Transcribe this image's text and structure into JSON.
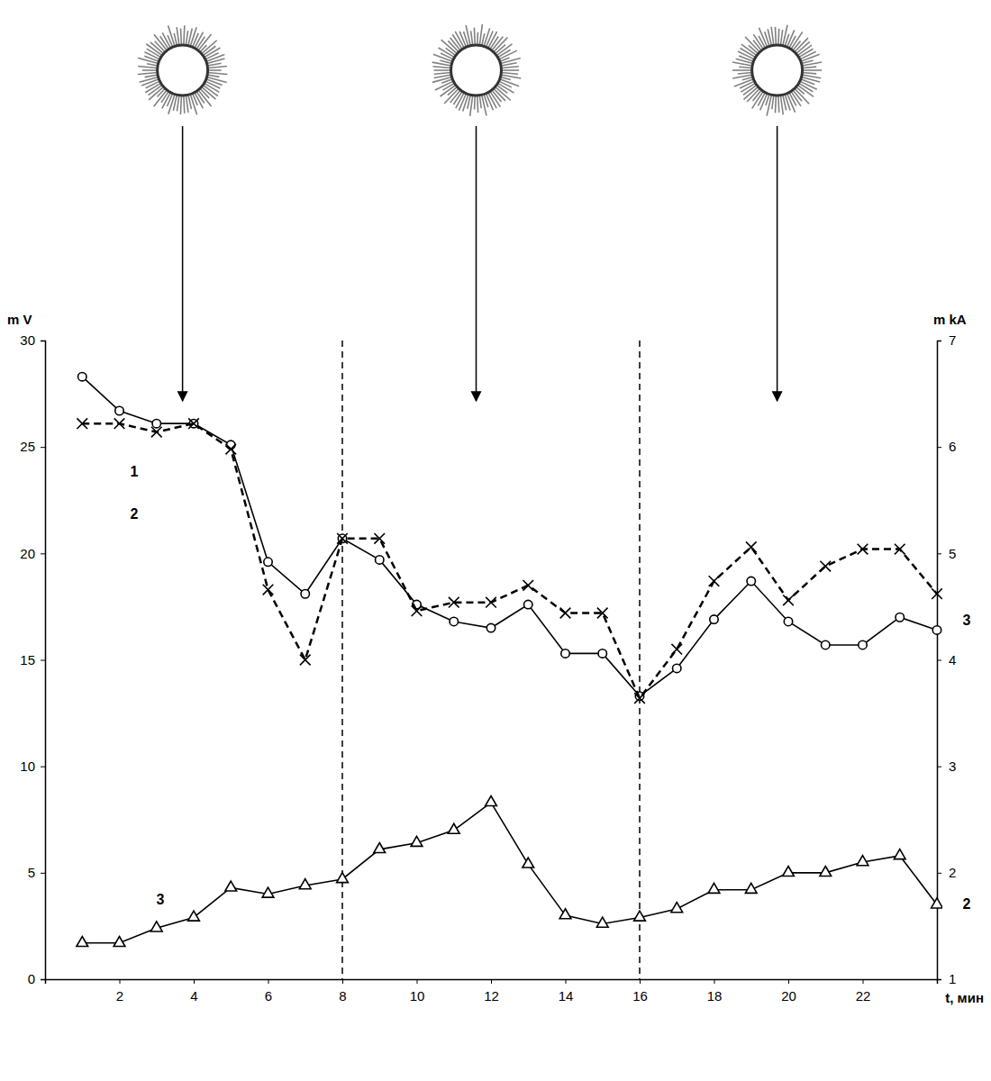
{
  "chart_data": {
    "type": "line",
    "x_label": "t, мин",
    "y_label": "m V",
    "y2_label": "m kA",
    "x": [
      1,
      2,
      3,
      4,
      5,
      6,
      7,
      8,
      9,
      10,
      11,
      12,
      13,
      14,
      15,
      16,
      17,
      18,
      19,
      20,
      21,
      22,
      23,
      24
    ],
    "series": [
      {
        "color": "#000000",
        "marker": "circle",
        "line_style": "solid",
        "values": [
          28.3,
          26.7,
          26.1,
          26.1,
          25.1,
          19.6,
          18.1,
          20.7,
          19.7,
          17.6,
          16.8,
          16.5,
          17.6,
          15.3,
          15.3,
          13.3,
          14.6,
          16.9,
          18.7,
          16.8,
          15.7,
          15.7,
          17.0,
          16.4
        ]
      },
      {
        "color": "#000000",
        "marker": "x",
        "line_style": "dashed",
        "values": [
          26.1,
          26.1,
          25.7,
          26.1,
          24.9,
          18.3,
          15.0,
          20.7,
          20.7,
          17.3,
          17.7,
          17.7,
          18.5,
          17.2,
          17.2,
          13.2,
          15.5,
          18.7,
          20.3,
          17.8,
          19.4,
          20.2,
          20.2,
          18.1
        ]
      },
      {
        "color": "#000000",
        "marker": "triangle",
        "line_style": "solid",
        "values": [
          1.7,
          1.7,
          2.4,
          2.9,
          4.3,
          4.0,
          4.4,
          4.7,
          6.1,
          6.4,
          7.0,
          8.3,
          5.4,
          3.0,
          2.6,
          2.9,
          3.3,
          4.2,
          4.2,
          5.0,
          5.0,
          5.5,
          5.8,
          3.5
        ]
      }
    ],
    "xlim": [
      0,
      24
    ],
    "xticks": [
      2,
      4,
      6,
      8,
      10,
      12,
      14,
      16,
      18,
      20,
      22
    ],
    "ylim": [
      0,
      30
    ],
    "yticks": [
      0,
      5,
      10,
      15,
      20,
      25,
      30
    ],
    "y2lim": [
      1,
      7
    ],
    "y2ticks": [
      1,
      2,
      3,
      4,
      5,
      6,
      7
    ],
    "grid": false,
    "vlines": [
      8,
      16
    ],
    "arrows": [
      3.7,
      11.6,
      19.7
    ],
    "annotations": [
      {
        "text": "1",
        "x": 2.4,
        "y": 23.8
      },
      {
        "text": "2",
        "x": 2.4,
        "y": 21.8
      },
      {
        "text": "3",
        "x": 3.1,
        "y": 3.7
      },
      {
        "text": "3",
        "x": 24.8,
        "y": 16.8
      },
      {
        "text": "2",
        "x": 24.8,
        "y": 3.5
      }
    ]
  }
}
